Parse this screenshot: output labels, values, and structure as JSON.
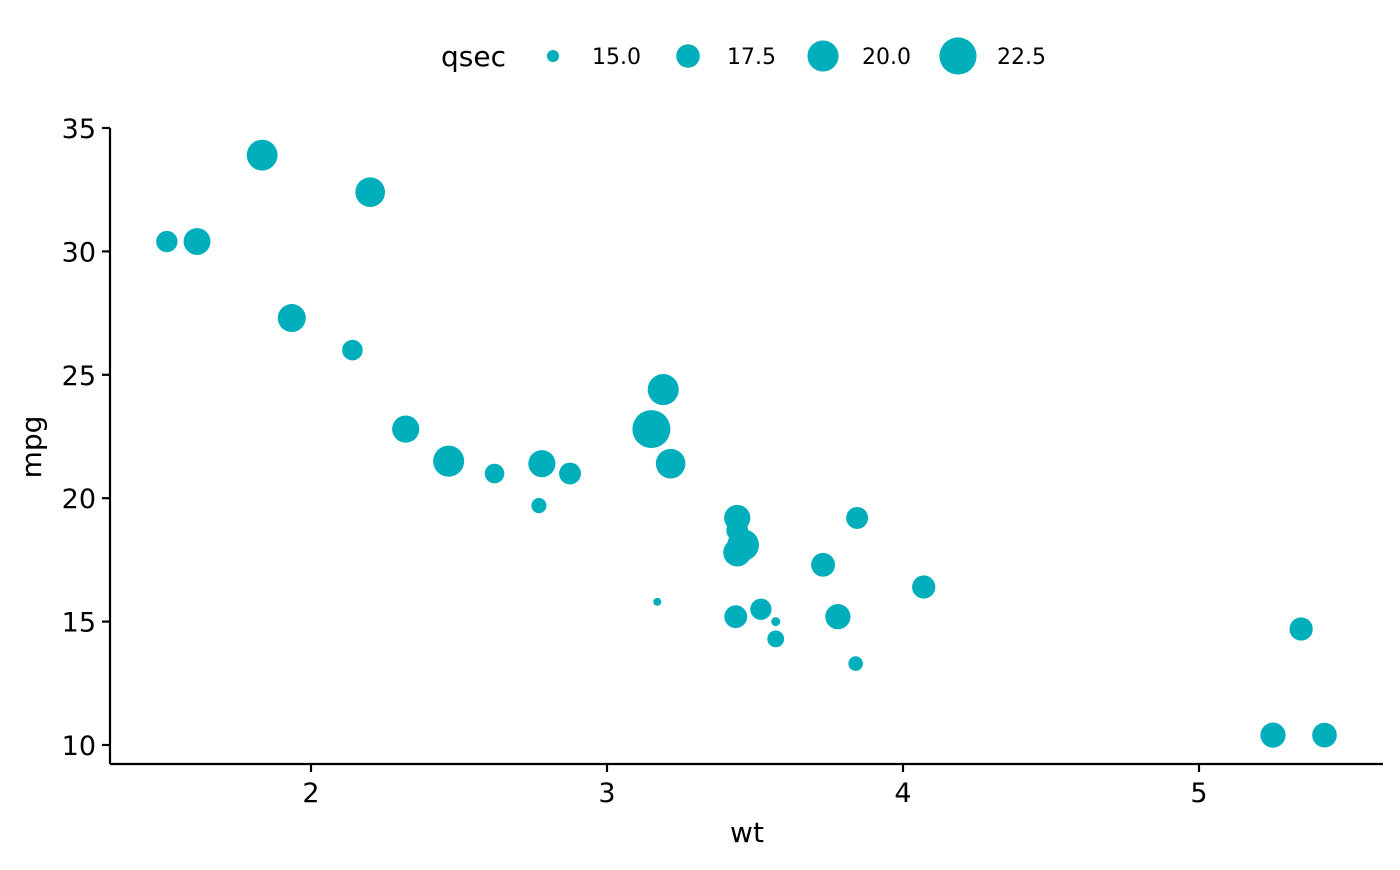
{
  "chart_data": {
    "type": "scatter",
    "title": "",
    "xlabel": "wt",
    "ylabel": "mpg",
    "xlim": [
      1.3,
      5.6
    ],
    "ylim": [
      9.3,
      35.0
    ],
    "x_ticks": [
      2,
      3,
      4,
      5
    ],
    "y_ticks": [
      10,
      15,
      20,
      25,
      30,
      35
    ],
    "x_tick_labels": [
      "2",
      "3",
      "4",
      "5"
    ],
    "y_tick_labels": [
      "10",
      "15",
      "20",
      "25",
      "30",
      "35"
    ],
    "grid": false,
    "point_color": "#00AFBB",
    "legend": {
      "title": "qsec",
      "position": "top",
      "entries": [
        {
          "label": "15.0",
          "value": 15.0
        },
        {
          "label": "17.5",
          "value": 17.5
        },
        {
          "label": "20.0",
          "value": 20.0
        },
        {
          "label": "22.5",
          "value": 22.5
        }
      ]
    },
    "size_variable": "qsec",
    "size_range_qsec": [
      14.5,
      22.9
    ],
    "series": [
      {
        "points": [
          {
            "x": 2.62,
            "y": 21.0,
            "size": 16.46
          },
          {
            "x": 2.875,
            "y": 21.0,
            "size": 17.02
          },
          {
            "x": 2.32,
            "y": 22.8,
            "size": 18.61
          },
          {
            "x": 3.215,
            "y": 21.4,
            "size": 19.44
          },
          {
            "x": 3.44,
            "y": 18.7,
            "size": 17.02
          },
          {
            "x": 3.46,
            "y": 18.1,
            "size": 20.22
          },
          {
            "x": 3.57,
            "y": 14.3,
            "size": 15.84
          },
          {
            "x": 3.19,
            "y": 24.4,
            "size": 20.0
          },
          {
            "x": 3.15,
            "y": 22.8,
            "size": 22.9
          },
          {
            "x": 3.44,
            "y": 19.2,
            "size": 18.3
          },
          {
            "x": 3.44,
            "y": 17.8,
            "size": 18.9
          },
          {
            "x": 4.07,
            "y": 16.4,
            "size": 17.4
          },
          {
            "x": 3.73,
            "y": 17.3,
            "size": 17.6
          },
          {
            "x": 3.78,
            "y": 15.2,
            "size": 18.0
          },
          {
            "x": 5.25,
            "y": 10.4,
            "size": 17.98
          },
          {
            "x": 5.424,
            "y": 10.4,
            "size": 17.82
          },
          {
            "x": 5.345,
            "y": 14.7,
            "size": 17.42
          },
          {
            "x": 2.2,
            "y": 32.4,
            "size": 19.47
          },
          {
            "x": 1.615,
            "y": 30.4,
            "size": 18.52
          },
          {
            "x": 1.835,
            "y": 33.9,
            "size": 19.9
          },
          {
            "x": 2.465,
            "y": 21.5,
            "size": 20.01
          },
          {
            "x": 3.52,
            "y": 15.5,
            "size": 16.87
          },
          {
            "x": 3.435,
            "y": 15.2,
            "size": 17.3
          },
          {
            "x": 3.84,
            "y": 13.3,
            "size": 15.41
          },
          {
            "x": 3.845,
            "y": 19.2,
            "size": 17.05
          },
          {
            "x": 1.935,
            "y": 27.3,
            "size": 18.9
          },
          {
            "x": 2.14,
            "y": 26.0,
            "size": 16.7
          },
          {
            "x": 1.513,
            "y": 30.4,
            "size": 16.9
          },
          {
            "x": 3.17,
            "y": 15.8,
            "size": 14.5
          },
          {
            "x": 2.77,
            "y": 19.7,
            "size": 15.5
          },
          {
            "x": 3.57,
            "y": 15.0,
            "size": 14.6
          },
          {
            "x": 2.78,
            "y": 21.4,
            "size": 18.6
          }
        ]
      }
    ]
  }
}
